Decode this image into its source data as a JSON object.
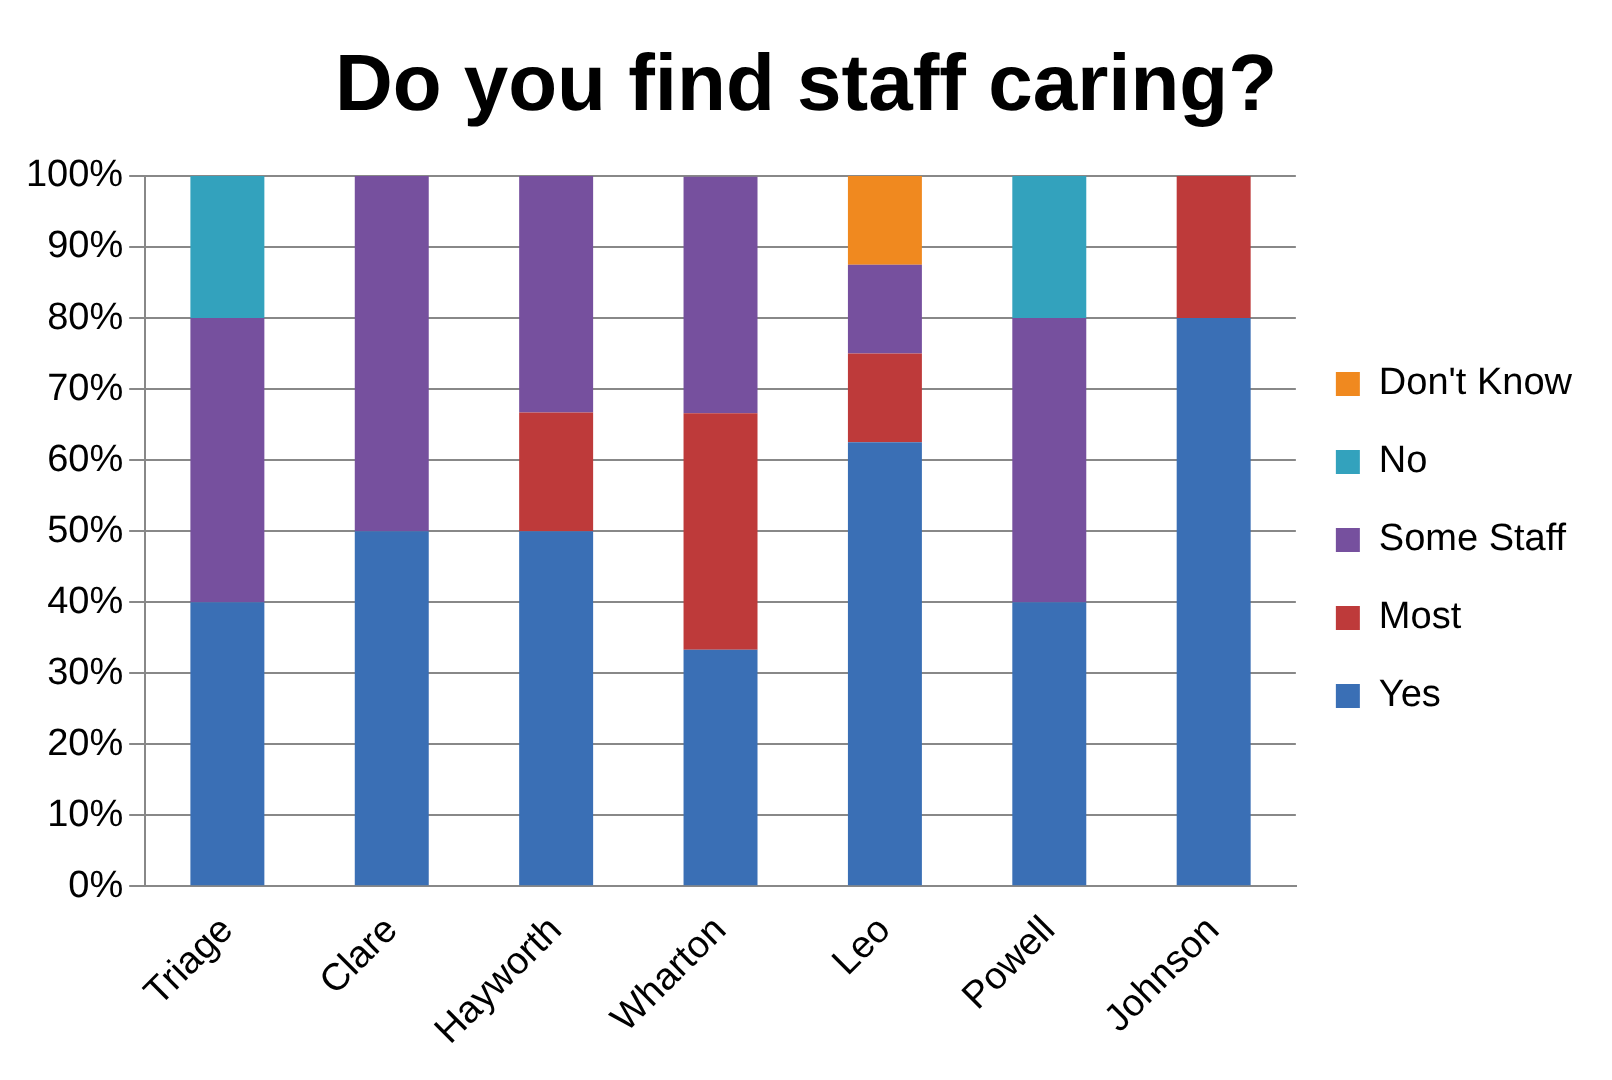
{
  "chart_data": {
    "type": "bar",
    "title": "Do you find staff caring?",
    "stacked": true,
    "categories": [
      "Triage",
      "Clare",
      "Hayworth",
      "Wharton",
      "Leo",
      "Powell",
      "Johnson"
    ],
    "series": [
      {
        "name": "Yes",
        "color": "#3a6fb5",
        "values": [
          40,
          50,
          50,
          33.3,
          62.5,
          40,
          80
        ]
      },
      {
        "name": "Most",
        "color": "#be3a3a",
        "values": [
          0,
          0,
          16.7,
          33.3,
          12.5,
          0,
          20
        ]
      },
      {
        "name": "Some Staff",
        "color": "#76509e",
        "values": [
          40,
          50,
          33.3,
          33.3,
          12.5,
          40,
          0
        ]
      },
      {
        "name": "No",
        "color": "#33a2bd",
        "values": [
          20,
          0,
          0,
          0,
          0,
          20,
          0
        ]
      },
      {
        "name": "Don't Know",
        "color": "#f0891f",
        "values": [
          0,
          0,
          0,
          0,
          12.5,
          0,
          0
        ]
      }
    ],
    "ylim": [
      0,
      100
    ],
    "yticks": [
      {
        "value": 0,
        "label": "0%"
      },
      {
        "value": 10,
        "label": "10%"
      },
      {
        "value": 20,
        "label": "20%"
      },
      {
        "value": 30,
        "label": "30%"
      },
      {
        "value": 40,
        "label": "40%"
      },
      {
        "value": 50,
        "label": "50%"
      },
      {
        "value": 60,
        "label": "60%"
      },
      {
        "value": 70,
        "label": "70%"
      },
      {
        "value": 80,
        "label": "80%"
      },
      {
        "value": 90,
        "label": "90%"
      },
      {
        "value": 100,
        "label": "100%"
      }
    ],
    "grid": "y",
    "legend": "right"
  }
}
